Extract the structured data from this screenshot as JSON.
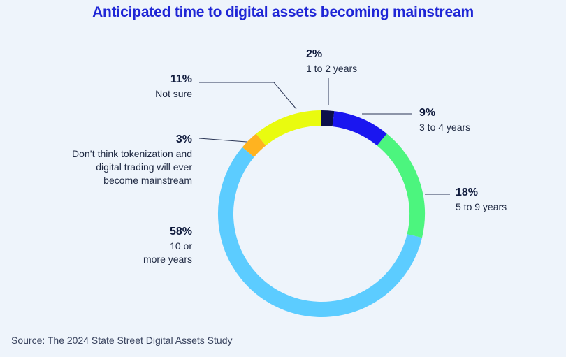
{
  "title": "Anticipated time to digital assets becoming mainstream",
  "source": "Source: The 2024 State Street Digital Assets Study",
  "chart_data": {
    "type": "pie",
    "donut": true,
    "title": "Anticipated time to digital assets becoming mainstream",
    "slices": [
      {
        "label": [
          "1 to 2 years"
        ],
        "pct_label": "2%",
        "value": 2,
        "color": "#0c0f4a"
      },
      {
        "label": [
          "3 to 4 years"
        ],
        "pct_label": "9%",
        "value": 9,
        "color": "#1a16f0"
      },
      {
        "label": [
          "5 to 9 years"
        ],
        "pct_label": "18%",
        "value": 18,
        "color": "#4cf57e"
      },
      {
        "label": [
          "10 or",
          "more years"
        ],
        "pct_label": "58%",
        "value": 58,
        "color": "#5cccff"
      },
      {
        "label": [
          "Don’t think tokenization and",
          "digital trading will ever",
          "become mainstream"
        ],
        "pct_label": "3%",
        "value": 3,
        "color": "#ffb320"
      },
      {
        "label": [
          "Not sure"
        ],
        "pct_label": "11%",
        "value": 11,
        "color": "#e9fb0f"
      }
    ]
  }
}
